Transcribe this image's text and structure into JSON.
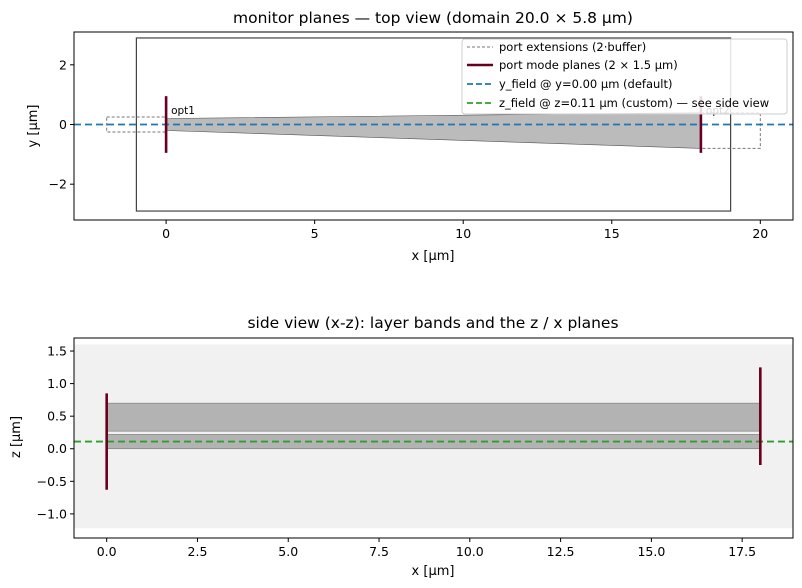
{
  "chart_data": [
    {
      "type": "line",
      "title": "monitor planes — top view (domain 20.0 × 5.8 µm)",
      "xlabel": "x [µm]",
      "ylabel": "y [µm]",
      "xlim": [
        -3.1,
        21.1
      ],
      "ylim": [
        -3.2,
        3.1
      ],
      "xticks": [
        0,
        5,
        10,
        15,
        20
      ],
      "xtick_labels": [
        "0",
        "5",
        "10",
        "15",
        "20"
      ],
      "yticks": [
        -2,
        0,
        2
      ],
      "ytick_labels": [
        "−2",
        "0",
        "2"
      ],
      "domain_box": {
        "x0": -1.0,
        "x1": 19.0,
        "y0": -2.9,
        "y1": 2.9
      },
      "waveguide_polygon": [
        [
          0,
          0.2
        ],
        [
          18,
          0.4
        ],
        [
          18,
          -0.8
        ],
        [
          0,
          -0.2
        ]
      ],
      "port_extensions": [
        {
          "x0": -2.0,
          "x1": 0.0,
          "y0": -0.25,
          "y1": 0.25
        },
        {
          "x0": 18.0,
          "x1": 20.0,
          "y0": -0.8,
          "y1": 0.4
        }
      ],
      "ports": [
        {
          "name": "opt1",
          "x": 0.0,
          "y0": -0.95,
          "y1": 0.95
        },
        {
          "name": "opt2",
          "x": 18.0,
          "y0": -0.95,
          "y1": 0.95
        }
      ],
      "y_field_y": 0.0,
      "legend_position": "top-right",
      "legend": [
        {
          "label": "port extensions (2·buffer)",
          "style": "grey-dashed-thin"
        },
        {
          "label": "port mode planes (2 × 1.5 µm)",
          "style": "maroon-solid"
        },
        {
          "label": "y_field @ y=0.00 µm (default)",
          "style": "blue-dashed"
        },
        {
          "label": "z_field @ z=0.11 µm (custom) — see side view",
          "style": "green-dashed"
        }
      ]
    },
    {
      "type": "line",
      "title": "side view (x-z): layer bands and the z / x planes",
      "xlabel": "x [µm]",
      "ylabel": "z [µm]",
      "xlim": [
        -0.9,
        18.9
      ],
      "ylim": [
        -1.37,
        1.7
      ],
      "xticks": [
        0,
        2.5,
        5,
        7.5,
        10,
        12.5,
        15,
        17.5
      ],
      "xtick_labels": [
        "0.0",
        "2.5",
        "5.0",
        "7.5",
        "10.0",
        "12.5",
        "15.0",
        "17.5"
      ],
      "yticks": [
        -1.0,
        -0.5,
        0.0,
        0.5,
        1.0,
        1.5
      ],
      "ytick_labels": [
        "−1.0",
        "−0.5",
        "0.0",
        "0.5",
        "1.0",
        "1.5"
      ],
      "domain_band": {
        "x0": -1.0,
        "x1": 19.0,
        "z0": -1.22,
        "z1": 1.6
      },
      "layer_bands": [
        {
          "x0": 0.0,
          "x1": 18.0,
          "z0": 0.27,
          "z1": 0.7
        },
        {
          "x0": 0.0,
          "x1": 18.0,
          "z0": 0.0,
          "z1": 0.22
        }
      ],
      "ports": [
        {
          "x": 0.0,
          "z0": -0.63,
          "z1": 0.85
        },
        {
          "x": 18.0,
          "z0": -0.25,
          "z1": 1.25
        }
      ],
      "z_field_z": 0.11
    }
  ],
  "colors": {
    "port": "#67001f",
    "y_field": "#1f77b4",
    "z_field": "#2ca02c",
    "waveguide_fill": "#bbbbbb",
    "extension": "#777777",
    "domain_bg": "#f1f1f1",
    "layer_fill": "#b3b3b3"
  }
}
